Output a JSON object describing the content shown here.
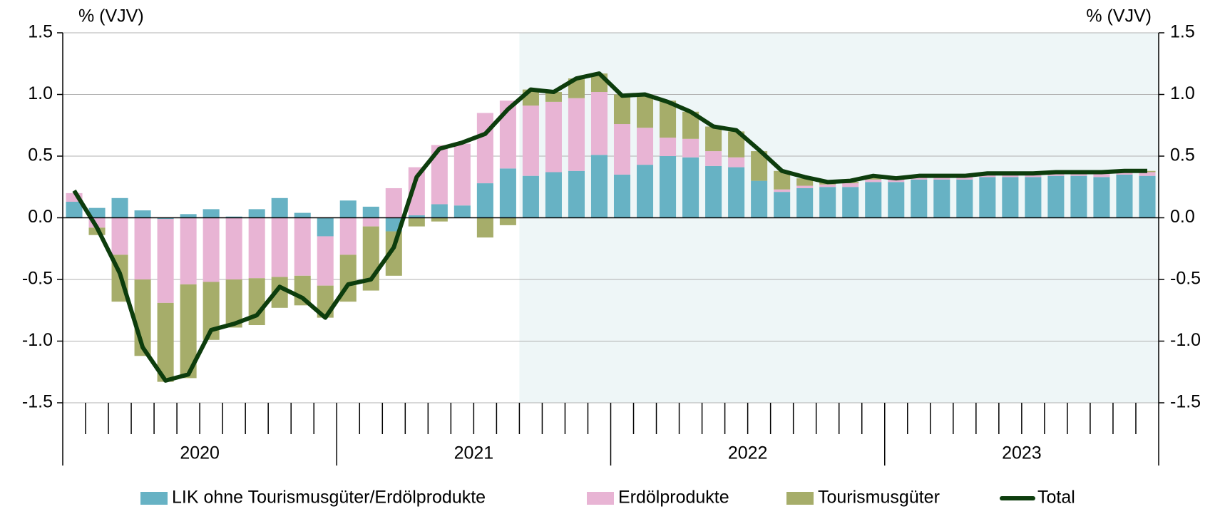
{
  "chart_data": {
    "type": "bar",
    "stacked": true,
    "y_label": "% (VJV)",
    "y2_label": "% (VJV)",
    "categories": [
      null,
      null,
      null,
      null,
      null,
      null,
      null,
      null,
      null,
      null,
      null,
      null,
      null,
      null,
      null,
      null,
      null,
      null,
      null,
      null,
      null,
      null,
      null,
      null,
      null,
      null,
      null,
      null,
      null,
      null,
      null,
      null,
      null,
      null,
      null,
      null,
      null,
      null,
      null,
      null,
      null,
      null,
      null,
      null,
      null,
      null,
      null,
      null
    ],
    "x_groups": [
      "2020",
      "2021",
      "2022",
      "2023"
    ],
    "shade_start": 20,
    "shade_color": "#eef6f7",
    "ylim": [
      -1.5,
      1.5
    ],
    "yticks": [
      1.5,
      {
        "value": 1.0,
        "label": "1.0"
      },
      0.5,
      {
        "value": 0.0,
        "label": "0.0"
      },
      -0.5,
      {
        "value": -1.0,
        "label": "-1.0"
      },
      -1.5
    ],
    "y2lim": [
      -1.5,
      1.5
    ],
    "y2ticks": [
      1.5,
      {
        "value": 1.0,
        "label": "1.0"
      },
      0.5,
      {
        "value": 0.0,
        "label": "0.0"
      },
      -0.5,
      {
        "value": -1.0,
        "label": "-1.0"
      },
      -1.5
    ],
    "grid": true,
    "legend": "bottom",
    "series": [
      {
        "name": "LIK ohne Tourismusgüter/Erdölprodukte",
        "color": "#67b2c4",
        "values": [
          0.13,
          0.08,
          0.16,
          0.06,
          -0.01,
          0.03,
          0.07,
          0.01,
          0.07,
          0.16,
          0.04,
          -0.15,
          0.14,
          0.09,
          -0.11,
          0.02,
          0.11,
          0.1,
          0.28,
          0.4,
          0.34,
          0.37,
          0.38,
          0.51,
          0.35,
          0.43,
          0.5,
          0.49,
          0.42,
          0.41,
          0.3,
          0.21,
          0.24,
          0.25,
          0.25,
          0.29,
          0.29,
          0.31,
          0.31,
          0.31,
          0.33,
          0.33,
          0.33,
          0.34,
          0.34,
          0.33,
          0.35,
          0.34
        ]
      },
      {
        "name": "Erdölprodukte",
        "color": "#e8b4d4",
        "values": [
          0.07,
          -0.08,
          -0.3,
          -0.5,
          -0.68,
          -0.54,
          -0.52,
          -0.5,
          -0.49,
          -0.48,
          -0.47,
          -0.4,
          -0.3,
          -0.07,
          0.24,
          0.39,
          0.48,
          0.5,
          0.57,
          0.55,
          0.57,
          0.57,
          0.59,
          0.51,
          0.41,
          0.3,
          0.15,
          0.15,
          0.12,
          0.08,
          0.0,
          0.02,
          0.02,
          0.02,
          0.03,
          0.02,
          0.02,
          0.02,
          0.02,
          0.02,
          0.02,
          0.02,
          0.02,
          0.02,
          0.02,
          0.03,
          0.02,
          0.03
        ]
      },
      {
        "name": "Tourismusgüter",
        "color": "#a6ad6a",
        "values": [
          0.0,
          -0.06,
          -0.38,
          -0.62,
          -0.64,
          -0.76,
          -0.47,
          -0.39,
          -0.38,
          -0.25,
          -0.24,
          -0.26,
          -0.38,
          -0.52,
          -0.36,
          -0.07,
          -0.03,
          0.0,
          -0.16,
          -0.06,
          0.13,
          0.08,
          0.16,
          0.15,
          0.24,
          0.27,
          0.3,
          0.22,
          0.2,
          0.21,
          0.24,
          0.15,
          0.06,
          0.02,
          0.01,
          0.02,
          0.01,
          0.01,
          0.01,
          0.01,
          0.01,
          0.01,
          0.01,
          0.01,
          0.01,
          0.01,
          0.01,
          0.01
        ]
      },
      {
        "name": "Total",
        "color": "#0d3d0d",
        "type": "line",
        "values": [
          0.22,
          -0.08,
          -0.45,
          -1.05,
          -1.32,
          -1.27,
          -0.91,
          -0.86,
          -0.79,
          -0.56,
          -0.65,
          -0.81,
          -0.54,
          -0.5,
          -0.24,
          0.33,
          0.56,
          0.61,
          0.68,
          0.88,
          1.04,
          1.02,
          1.13,
          1.17,
          0.99,
          1.0,
          0.94,
          0.86,
          0.74,
          0.71,
          0.55,
          0.38,
          0.33,
          0.29,
          0.3,
          0.34,
          0.32,
          0.34,
          0.34,
          0.34,
          0.36,
          0.36,
          0.36,
          0.37,
          0.37,
          0.37,
          0.38,
          0.38
        ]
      }
    ]
  }
}
